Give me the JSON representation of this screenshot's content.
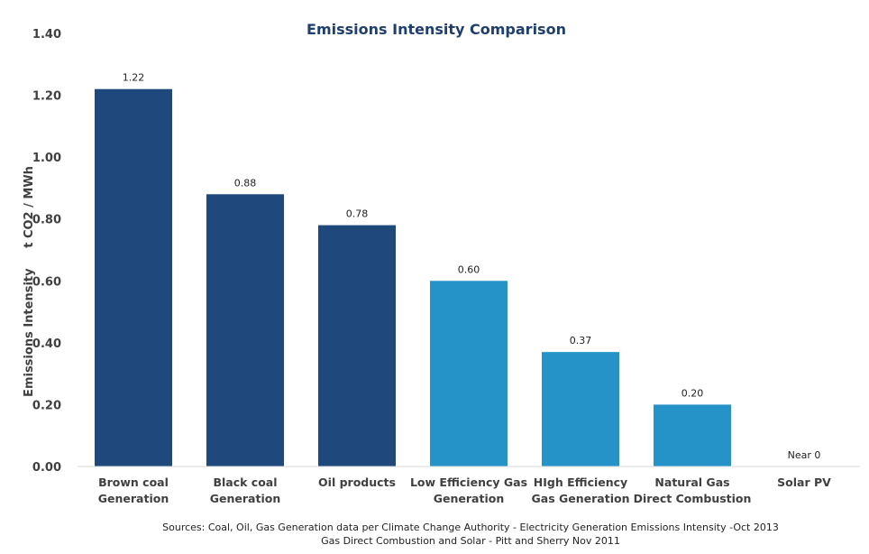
{
  "chart_data": {
    "type": "bar",
    "title": "Emissions Intensity Comparison",
    "ylabel": "Emissions Intensity     t CO2 / MWh",
    "xlabel": "",
    "ylim": [
      0,
      1.4
    ],
    "yticks": [
      "0.00",
      "0.20",
      "0.40",
      "0.60",
      "0.80",
      "1.00",
      "1.20",
      "1.40"
    ],
    "grid": false,
    "categories": [
      [
        "Brown coal",
        "Generation"
      ],
      [
        "Black coal",
        "Generation"
      ],
      [
        "Oil products"
      ],
      [
        "Low Efficiency Gas",
        "Generation"
      ],
      [
        "HIgh Efficiency",
        "Gas Generation"
      ],
      [
        "Natural Gas",
        "Direct Combustion"
      ],
      [
        "Solar PV"
      ]
    ],
    "values": [
      1.22,
      0.88,
      0.78,
      0.6,
      0.37,
      0.2,
      0
    ],
    "data_labels": [
      "1.22",
      "0.88",
      "0.78",
      "0.60",
      "0.37",
      "0.20",
      "Near 0"
    ],
    "bar_colors": [
      "#1f497d",
      "#1f497d",
      "#1f497d",
      "#2593c7",
      "#2593c7",
      "#2593c7",
      "#2593c7"
    ],
    "sources": [
      "Sources: Coal, Oil, Gas Generation data per Climate Change Authority - Electricity Generation Emissions Intensity -Oct 2013",
      "Gas Direct Combustion and Solar - Pitt and Sherry Nov  2011"
    ]
  }
}
